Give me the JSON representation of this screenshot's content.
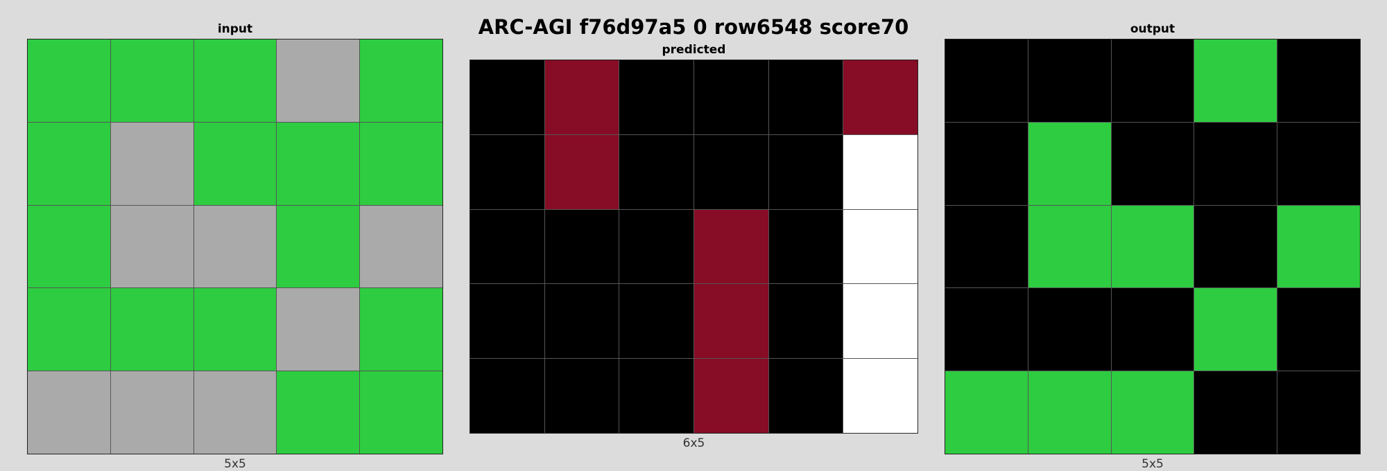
{
  "title": "ARC-AGI f76d97a5 0 row6548 score70",
  "palette": {
    "0": "#000000",
    "3": "#2ecc40",
    "5": "#aaaaaa",
    "8": "#870c25",
    "9": "#ffffff"
  },
  "panels": {
    "input": {
      "label": "input",
      "size": "5x5",
      "rows": [
        [
          3,
          3,
          3,
          5,
          3
        ],
        [
          3,
          5,
          3,
          3,
          3
        ],
        [
          3,
          5,
          5,
          3,
          5
        ],
        [
          3,
          3,
          3,
          5,
          3
        ],
        [
          5,
          5,
          5,
          3,
          3
        ]
      ]
    },
    "predicted": {
      "label": "predicted",
      "size": "6x5",
      "rows": [
        [
          0,
          8,
          0,
          0,
          0,
          8
        ],
        [
          0,
          8,
          0,
          0,
          0,
          9
        ],
        [
          0,
          0,
          0,
          8,
          0,
          9
        ],
        [
          0,
          0,
          0,
          8,
          0,
          9
        ],
        [
          0,
          0,
          0,
          8,
          0,
          9
        ]
      ]
    },
    "output": {
      "label": "output",
      "size": "5x5",
      "rows": [
        [
          0,
          0,
          0,
          3,
          0
        ],
        [
          0,
          3,
          0,
          0,
          0
        ],
        [
          0,
          3,
          3,
          0,
          3
        ],
        [
          0,
          0,
          0,
          3,
          0
        ],
        [
          3,
          3,
          3,
          0,
          0
        ]
      ]
    }
  }
}
